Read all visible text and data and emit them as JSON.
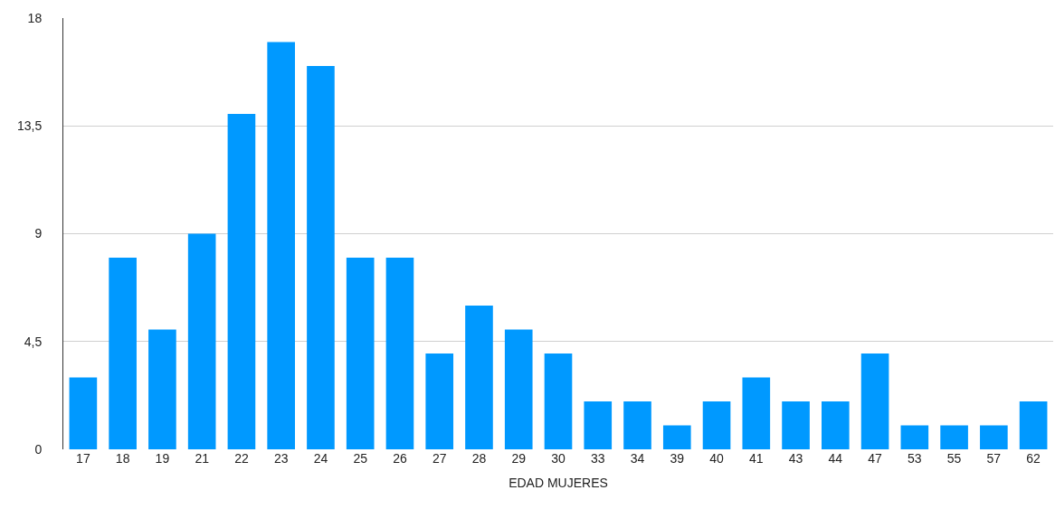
{
  "chart_data": {
    "type": "bar",
    "xlabel": "EDAD MUJERES",
    "categories": [
      "17",
      "18",
      "19",
      "21",
      "22",
      "23",
      "24",
      "25",
      "26",
      "27",
      "28",
      "29",
      "30",
      "33",
      "34",
      "39",
      "40",
      "41",
      "43",
      "44",
      "47",
      "53",
      "55",
      "57",
      "62"
    ],
    "values": [
      3,
      8,
      5,
      9,
      14,
      17,
      16,
      8,
      8,
      4,
      6,
      5,
      4,
      2,
      2,
      1,
      2,
      3,
      2,
      2,
      4,
      1,
      1,
      1,
      2
    ],
    "color": "#0099ff",
    "ylim": [
      0,
      18
    ],
    "yticks": [
      0,
      {
        "value": 4.5,
        "label": "4,5"
      },
      9,
      {
        "value": 13.5,
        "label": "13,5"
      },
      18
    ],
    "grid": "y"
  }
}
